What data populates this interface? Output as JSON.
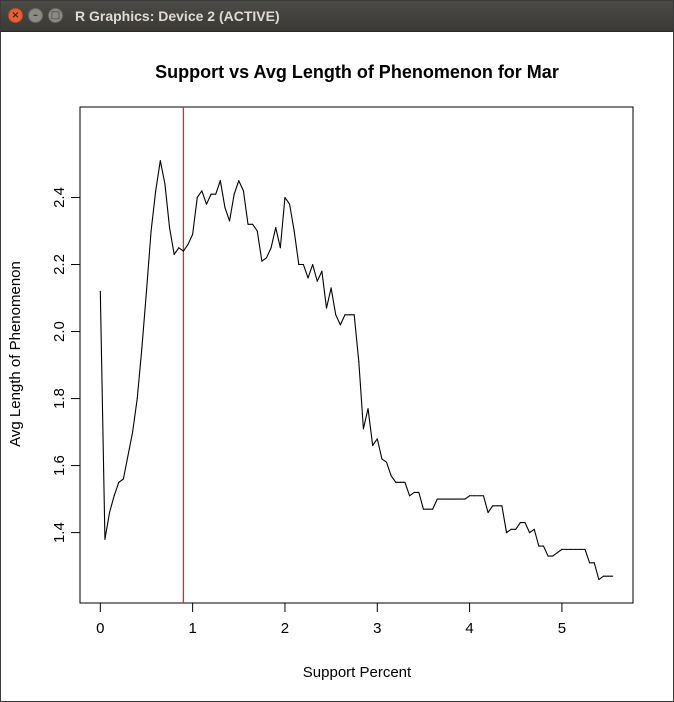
{
  "window": {
    "title": "R Graphics: Device 2 (ACTIVE)",
    "close_glyph": "×",
    "minimize_glyph": "–",
    "maximize_glyph": "□"
  },
  "chart_data": {
    "type": "line",
    "title": "Support vs Avg Length of Phenomenon for Mar",
    "xlabel": "Support Percent",
    "ylabel": "Avg Length of Phenomenon",
    "xlim": [
      -0.22,
      5.77
    ],
    "ylim": [
      1.19,
      2.67
    ],
    "x_ticks": [
      0,
      1,
      2,
      3,
      4,
      5
    ],
    "y_ticks": [
      1.4,
      1.6,
      1.8,
      2.0,
      2.2,
      2.4
    ],
    "grid": false,
    "vline": {
      "x": 0.9,
      "color": "#e8232a"
    },
    "line_color": "#000000",
    "x": [
      0,
      0.05,
      0.1,
      0.15,
      0.2,
      0.25,
      0.3,
      0.35,
      0.4,
      0.45,
      0.5,
      0.55,
      0.6,
      0.65,
      0.7,
      0.75,
      0.8,
      0.85,
      0.9,
      0.95,
      1.0,
      1.05,
      1.1,
      1.15,
      1.2,
      1.25,
      1.3,
      1.35,
      1.4,
      1.45,
      1.5,
      1.55,
      1.6,
      1.65,
      1.7,
      1.75,
      1.8,
      1.85,
      1.9,
      1.95,
      2.0,
      2.05,
      2.1,
      2.15,
      2.2,
      2.25,
      2.3,
      2.35,
      2.4,
      2.45,
      2.5,
      2.55,
      2.6,
      2.65,
      2.7,
      2.75,
      2.8,
      2.85,
      2.9,
      2.95,
      3.0,
      3.05,
      3.1,
      3.15,
      3.2,
      3.25,
      3.3,
      3.35,
      3.4,
      3.45,
      3.5,
      3.55,
      3.6,
      3.65,
      3.7,
      3.75,
      3.8,
      3.85,
      3.9,
      3.95,
      4.0,
      4.05,
      4.1,
      4.15,
      4.2,
      4.25,
      4.3,
      4.35,
      4.4,
      4.45,
      4.5,
      4.55,
      4.6,
      4.65,
      4.7,
      4.75,
      4.8,
      4.85,
      4.9,
      4.95,
      5.0,
      5.05,
      5.1,
      5.15,
      5.2,
      5.25,
      5.3,
      5.35,
      5.4,
      5.45,
      5.5,
      5.55
    ],
    "y": [
      2.12,
      1.38,
      1.46,
      1.51,
      1.55,
      1.56,
      1.63,
      1.7,
      1.8,
      1.95,
      2.12,
      2.3,
      2.42,
      2.51,
      2.44,
      2.31,
      2.23,
      2.25,
      2.24,
      2.26,
      2.29,
      2.4,
      2.42,
      2.38,
      2.41,
      2.41,
      2.45,
      2.37,
      2.33,
      2.41,
      2.45,
      2.42,
      2.32,
      2.32,
      2.3,
      2.21,
      2.22,
      2.25,
      2.31,
      2.25,
      2.4,
      2.38,
      2.3,
      2.2,
      2.2,
      2.16,
      2.2,
      2.15,
      2.18,
      2.07,
      2.13,
      2.05,
      2.02,
      2.05,
      2.05,
      2.05,
      1.91,
      1.71,
      1.77,
      1.66,
      1.68,
      1.62,
      1.61,
      1.57,
      1.55,
      1.55,
      1.55,
      1.51,
      1.52,
      1.52,
      1.47,
      1.47,
      1.47,
      1.5,
      1.5,
      1.5,
      1.5,
      1.5,
      1.5,
      1.5,
      1.51,
      1.51,
      1.51,
      1.51,
      1.46,
      1.48,
      1.48,
      1.48,
      1.4,
      1.41,
      1.41,
      1.43,
      1.43,
      1.4,
      1.41,
      1.36,
      1.36,
      1.33,
      1.33,
      1.34,
      1.35,
      1.35,
      1.35,
      1.35,
      1.35,
      1.35,
      1.31,
      1.31,
      1.26,
      1.27,
      1.27,
      1.27
    ]
  }
}
